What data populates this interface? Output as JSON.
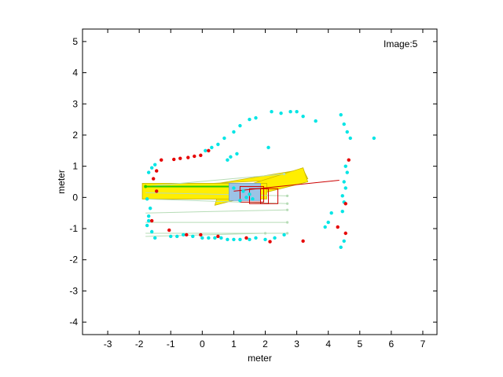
{
  "chart_data": {
    "type": "scatter",
    "xlabel": "meter",
    "ylabel": "meter",
    "xlim": [
      -3.8,
      7.45
    ],
    "ylim": [
      -4.4,
      5.4
    ],
    "xticks": [
      -3,
      -2,
      -1,
      0,
      1,
      2,
      3,
      4,
      5,
      6,
      7
    ],
    "yticks": [
      -4,
      -3,
      -2,
      -1,
      0,
      1,
      2,
      3,
      4,
      5
    ],
    "annotation": "Image:5",
    "colors": {
      "cyan_points": "#00e5e5",
      "red_points": "#e60000",
      "yellow_region": "#ffee00",
      "yellow_edge": "#c8b400",
      "green_line": "#22cc00",
      "light_green_rays": "#b6dcb6",
      "blue_box": "#9cc3e6",
      "red_line": "#cc0000"
    },
    "cyan_points": [
      [
        -1.7,
        0.8
      ],
      [
        -1.6,
        0.95
      ],
      [
        -1.5,
        1.05
      ],
      [
        -1.75,
        -0.05
      ],
      [
        -1.65,
        -0.35
      ],
      [
        -1.7,
        -0.6
      ],
      [
        -1.75,
        -0.9
      ],
      [
        -1.6,
        -1.1
      ],
      [
        -1.5,
        -1.3
      ],
      [
        -1.7,
        -0.75
      ],
      [
        -1.0,
        -1.25
      ],
      [
        -0.8,
        -1.25
      ],
      [
        -0.6,
        -1.2
      ],
      [
        -0.3,
        -1.25
      ],
      [
        0.0,
        -1.3
      ],
      [
        0.2,
        -1.3
      ],
      [
        0.4,
        -1.3
      ],
      [
        0.6,
        -1.3
      ],
      [
        0.8,
        -1.35
      ],
      [
        1.0,
        -1.35
      ],
      [
        1.2,
        -1.35
      ],
      [
        1.5,
        -1.35
      ],
      [
        1.7,
        -1.3
      ],
      [
        2.0,
        -1.35
      ],
      [
        2.3,
        -1.3
      ],
      [
        2.6,
        -1.2
      ],
      [
        0.1,
        1.5
      ],
      [
        0.3,
        1.6
      ],
      [
        0.5,
        1.7
      ],
      [
        0.7,
        1.9
      ],
      [
        1.0,
        2.1
      ],
      [
        1.2,
        2.3
      ],
      [
        1.5,
        2.5
      ],
      [
        1.7,
        2.55
      ],
      [
        2.2,
        2.75
      ],
      [
        2.5,
        2.7
      ],
      [
        2.8,
        2.75
      ],
      [
        3.0,
        2.75
      ],
      [
        3.2,
        2.6
      ],
      [
        3.6,
        2.45
      ],
      [
        4.4,
        2.65
      ],
      [
        4.5,
        2.35
      ],
      [
        4.6,
        2.1
      ],
      [
        4.7,
        1.9
      ],
      [
        5.45,
        1.9
      ],
      [
        4.55,
        1.0
      ],
      [
        4.6,
        0.8
      ],
      [
        4.5,
        0.5
      ],
      [
        4.55,
        0.3
      ],
      [
        4.45,
        0.05
      ],
      [
        4.5,
        -0.15
      ],
      [
        4.45,
        -0.45
      ],
      [
        4.1,
        -0.5
      ],
      [
        4.0,
        -0.8
      ],
      [
        3.9,
        -0.95
      ],
      [
        4.5,
        -1.4
      ],
      [
        4.4,
        -1.6
      ],
      [
        0.8,
        1.2
      ],
      [
        0.9,
        1.3
      ],
      [
        1.1,
        1.4
      ],
      [
        2.1,
        1.6
      ],
      [
        1.0,
        0.3
      ],
      [
        1.3,
        0.2
      ],
      [
        1.5,
        0.1
      ],
      [
        1.2,
        -0.1
      ],
      [
        1.6,
        -0.05
      ],
      [
        1.4,
        0.0
      ]
    ],
    "red_points": [
      [
        -1.55,
        0.6
      ],
      [
        -1.45,
        0.85
      ],
      [
        -1.3,
        1.2
      ],
      [
        -0.9,
        1.22
      ],
      [
        -0.7,
        1.25
      ],
      [
        -0.45,
        1.28
      ],
      [
        -0.25,
        1.32
      ],
      [
        -0.05,
        1.35
      ],
      [
        0.2,
        1.5
      ],
      [
        -1.45,
        0.2
      ],
      [
        -1.6,
        -0.75
      ],
      [
        -1.05,
        -1.05
      ],
      [
        -0.5,
        -1.2
      ],
      [
        -0.05,
        -1.2
      ],
      [
        0.5,
        -1.25
      ],
      [
        1.4,
        -1.3
      ],
      [
        2.15,
        -1.42
      ],
      [
        3.2,
        -1.4
      ],
      [
        4.65,
        1.2
      ],
      [
        4.55,
        -0.2
      ],
      [
        4.3,
        -0.95
      ],
      [
        4.55,
        -1.15
      ]
    ],
    "yellow_polygons": [
      [
        [
          -1.9,
          0.45
        ],
        [
          0.3,
          0.45
        ],
        [
          3.35,
          0.6
        ],
        [
          3.2,
          0.9
        ],
        [
          0.5,
          0.45
        ],
        [
          0.5,
          -0.05
        ],
        [
          -1.9,
          -0.05
        ]
      ],
      [
        [
          0.5,
          0.1
        ],
        [
          3.2,
          0.95
        ],
        [
          3.35,
          0.5
        ],
        [
          0.4,
          -0.25
        ]
      ]
    ],
    "yellow_rect": [
      [
        -1.9,
        -0.05
      ],
      [
        2.05,
        0.45
      ]
    ],
    "green_line": [
      [
        -1.8,
        0.35
      ],
      [
        1.7,
        0.35
      ]
    ],
    "rays": [
      [
        [
          -1.8,
          0.35
        ],
        [
          2.6,
          0.75
        ]
      ],
      [
        [
          -1.8,
          0.15
        ],
        [
          2.7,
          0.05
        ]
      ],
      [
        [
          -1.8,
          -0.05
        ],
        [
          2.7,
          -0.2
        ]
      ],
      [
        [
          -1.8,
          -0.5
        ],
        [
          2.7,
          -0.4
        ]
      ],
      [
        [
          -1.8,
          -0.8
        ],
        [
          2.7,
          -0.8
        ]
      ],
      [
        [
          -1.8,
          -1.15
        ],
        [
          2.7,
          -1.15
        ]
      ],
      [
        [
          -1.8,
          -1.25
        ],
        [
          2.0,
          -1.15
        ]
      ]
    ],
    "blue_box": [
      [
        0.85,
        -0.1
      ],
      [
        1.85,
        0.45
      ]
    ],
    "red_boxes": [
      [
        [
          1.2,
          -0.15
        ],
        [
          1.95,
          0.35
        ]
      ],
      [
        [
          1.5,
          -0.2
        ],
        [
          2.1,
          0.28
        ]
      ],
      [
        [
          1.85,
          -0.2
        ],
        [
          2.4,
          0.28
        ]
      ]
    ],
    "red_line": [
      [
        1.0,
        0.2
      ],
      [
        4.35,
        0.55
      ]
    ]
  }
}
